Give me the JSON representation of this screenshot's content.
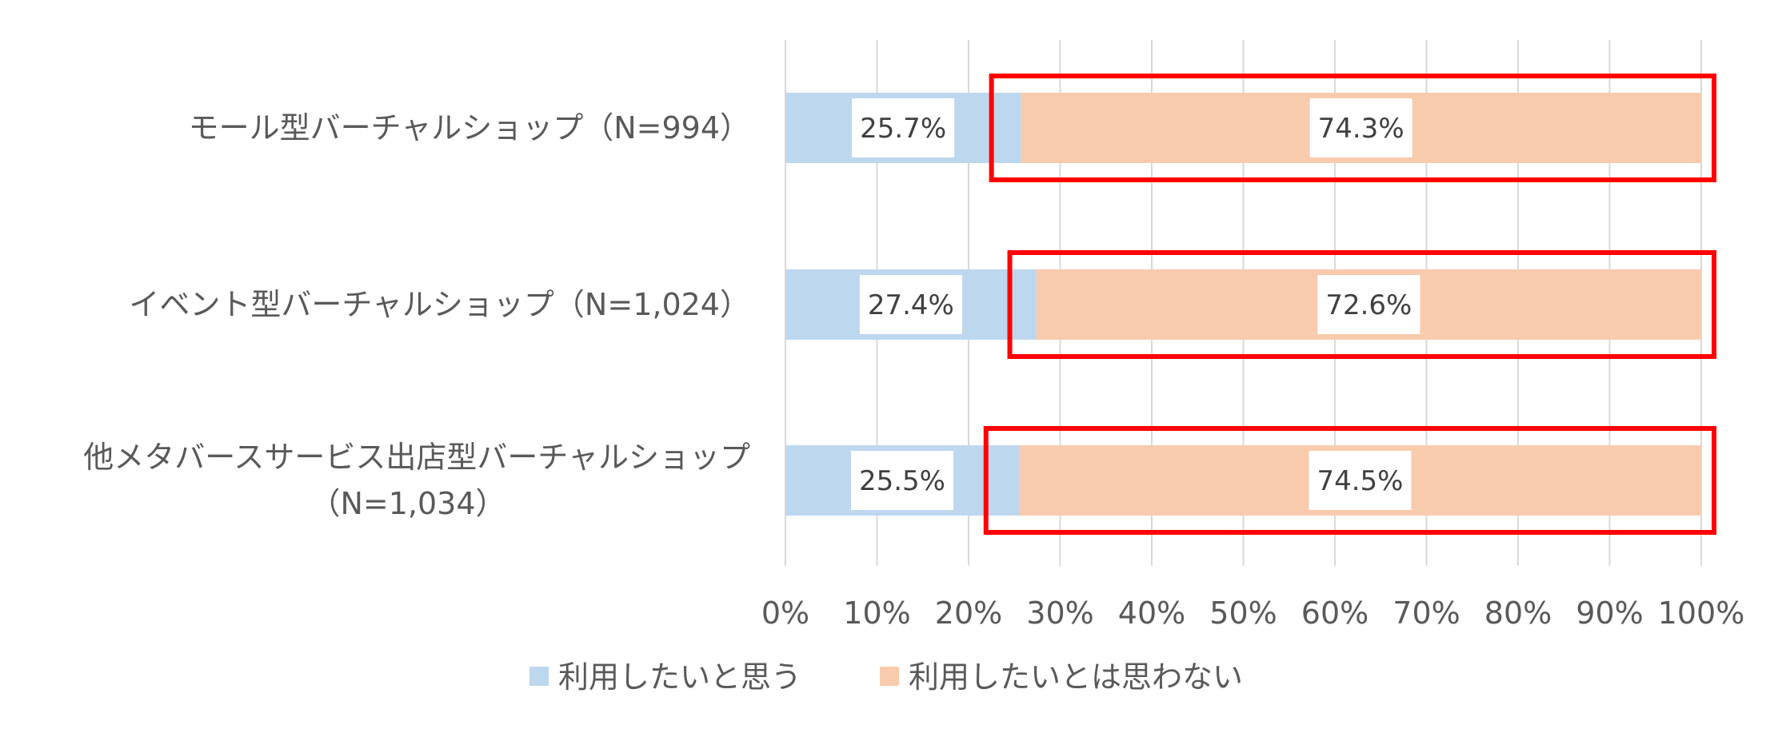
{
  "chart_data": {
    "type": "bar",
    "orientation": "horizontal",
    "stacked": "percent",
    "categories": [
      [
        "モール型バーチャルショップ（N=994）"
      ],
      [
        "イベント型バーチャルショップ（N=1,024）"
      ],
      [
        "他メタバースサービス出店型バーチャルショップ",
        "（N=1,034）"
      ]
    ],
    "series": [
      {
        "name": "利用したいと思う",
        "values": [
          25.7,
          27.4,
          25.5
        ],
        "labels": [
          "25.7%",
          "27.4%",
          "25.5%"
        ],
        "color": "#bdd7ee"
      },
      {
        "name": "利用したいとは思わない",
        "values": [
          74.3,
          72.6,
          74.5
        ],
        "labels": [
          "74.3%",
          "72.6%",
          "74.5%"
        ],
        "color": "#f8cbad"
      }
    ],
    "xlim": [
      0,
      100
    ],
    "xticks": [
      "0%",
      "10%",
      "20%",
      "30%",
      "40%",
      "50%",
      "60%",
      "70%",
      "80%",
      "90%",
      "100%"
    ],
    "grid": true,
    "legend": "bottom",
    "highlight": {
      "color": "#ff0000",
      "ranges": [
        [
          22.5,
          101.4
        ],
        [
          24.5,
          101.4
        ],
        [
          21.9,
          101.4
        ]
      ]
    }
  }
}
